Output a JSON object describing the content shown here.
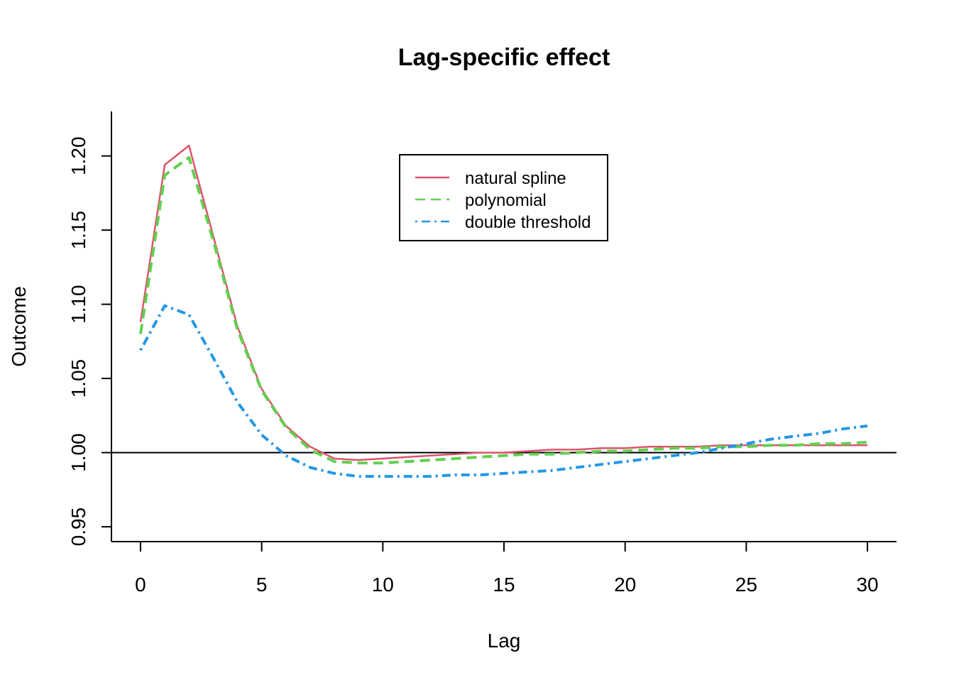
{
  "chart_data": {
    "type": "line",
    "title": "Lag-specific effect",
    "xlabel": "Lag",
    "ylabel": "Outcome",
    "xlim": [
      -1.2,
      31.2
    ],
    "ylim": [
      0.94,
      1.23
    ],
    "x_ticks": [
      0,
      5,
      10,
      15,
      20,
      25,
      30
    ],
    "y_ticks": [
      0.95,
      1.0,
      1.05,
      1.1,
      1.15,
      1.2
    ],
    "x_tick_labels": [
      "0",
      "5",
      "10",
      "15",
      "20",
      "25",
      "30"
    ],
    "y_tick_labels": [
      "0.95",
      "1.00",
      "1.05",
      "1.10",
      "1.15",
      "1.20"
    ],
    "reference_line": 1.0,
    "reference_color": "#000000",
    "grid": false,
    "legend_position": "top-center",
    "series": [
      {
        "name": "natural spline",
        "color": "#DF536B",
        "dash": "solid",
        "x": [
          0,
          1,
          2,
          3,
          4,
          5,
          6,
          7,
          8,
          9,
          10,
          11,
          12,
          13,
          14,
          15,
          16,
          17,
          18,
          19,
          20,
          21,
          22,
          23,
          24,
          25,
          26,
          27,
          28,
          29,
          30
        ],
        "values": [
          1.088,
          1.194,
          1.207,
          1.146,
          1.085,
          1.043,
          1.018,
          1.004,
          0.996,
          0.995,
          0.996,
          0.997,
          0.998,
          0.999,
          1.0,
          1.0,
          1.001,
          1.002,
          1.002,
          1.003,
          1.003,
          1.004,
          1.004,
          1.004,
          1.005,
          1.005,
          1.005,
          1.005,
          1.005,
          1.005,
          1.005
        ]
      },
      {
        "name": "polynomial",
        "color": "#61D04F",
        "dash": "dashed",
        "x": [
          0,
          1,
          2,
          3,
          4,
          5,
          6,
          7,
          8,
          9,
          10,
          11,
          12,
          13,
          14,
          15,
          16,
          17,
          18,
          19,
          20,
          21,
          22,
          23,
          24,
          25,
          26,
          27,
          28,
          29,
          30
        ],
        "values": [
          1.08,
          1.187,
          1.199,
          1.143,
          1.083,
          1.042,
          1.017,
          1.002,
          0.994,
          0.993,
          0.993,
          0.994,
          0.995,
          0.996,
          0.997,
          0.998,
          0.999,
          0.999,
          1.0,
          1.001,
          1.001,
          1.002,
          1.003,
          1.003,
          1.004,
          1.004,
          1.005,
          1.005,
          1.006,
          1.006,
          1.007
        ]
      },
      {
        "name": "double threshold",
        "color": "#2297E6",
        "dash": "dotdash",
        "x": [
          0,
          1,
          2,
          3,
          4,
          5,
          6,
          7,
          8,
          9,
          10,
          11,
          12,
          13,
          14,
          15,
          16,
          17,
          18,
          19,
          20,
          21,
          22,
          23,
          24,
          25,
          26,
          27,
          28,
          29,
          30
        ],
        "values": [
          1.069,
          1.099,
          1.093,
          1.064,
          1.034,
          1.012,
          0.998,
          0.99,
          0.986,
          0.984,
          0.984,
          0.984,
          0.984,
          0.985,
          0.985,
          0.986,
          0.987,
          0.988,
          0.99,
          0.992,
          0.994,
          0.996,
          0.998,
          1.0,
          1.003,
          1.006,
          1.009,
          1.011,
          1.013,
          1.016,
          1.018
        ]
      }
    ]
  }
}
